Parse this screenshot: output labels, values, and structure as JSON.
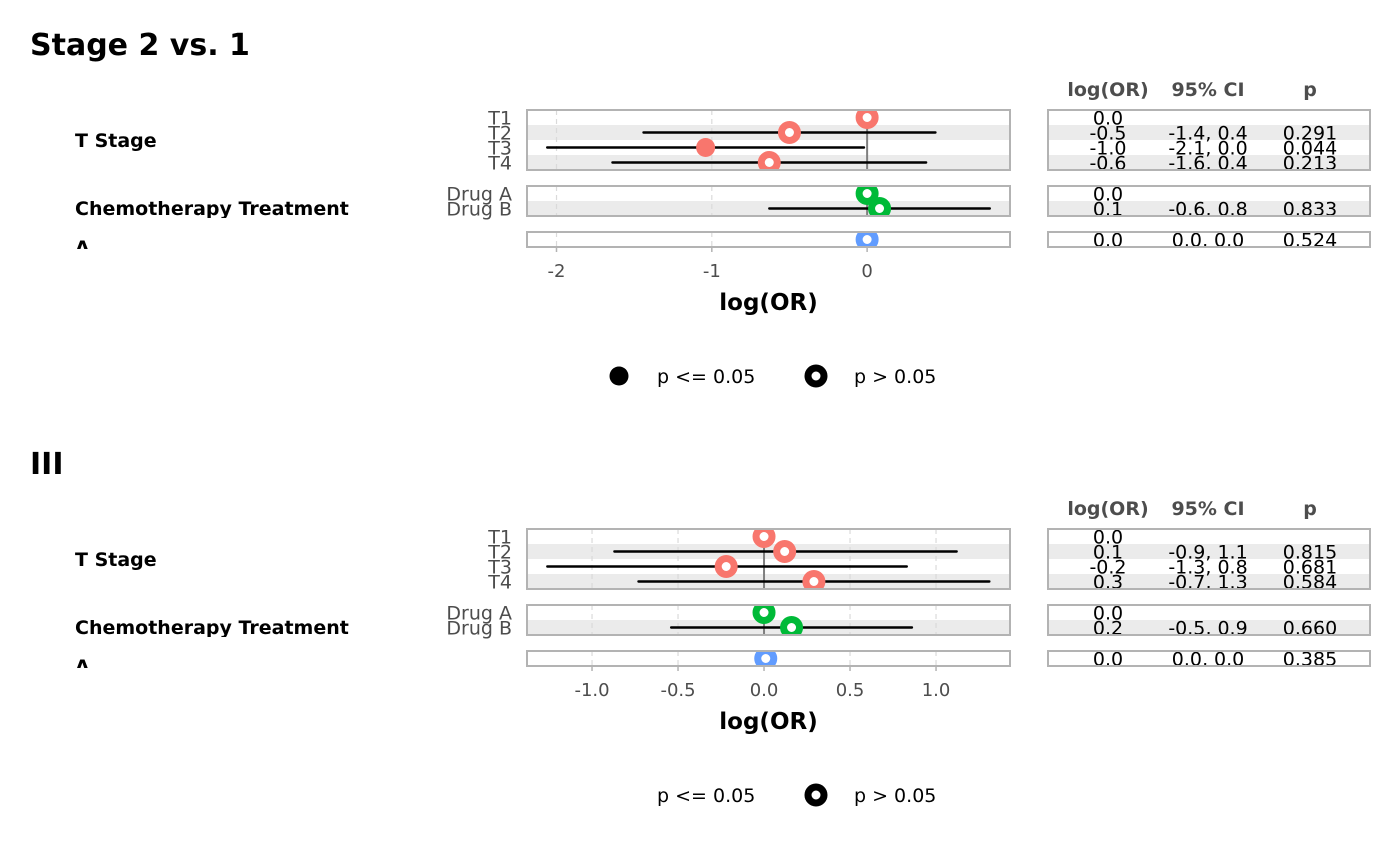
{
  "colors": {
    "T Stage": "#F8766D",
    "Chemotherapy Treatment": "#00BA38",
    "Age": "#619CFF",
    "panel_band": "#EBEBEB",
    "panel_border": "#B3B3B3",
    "ci_line": "#000000",
    "ref_line": "#7F7F7F"
  },
  "chart_data": [
    {
      "type": "forest",
      "title": "Stage 2 vs. 1",
      "xlabel": "log(OR)",
      "xlim": [
        -2.19,
        0.92
      ],
      "xticks": [
        -2,
        -1,
        0
      ],
      "xtick_labels": [
        "-2",
        "-1",
        "0"
      ],
      "table_headers": [
        "log(OR)",
        "95% CI",
        "p"
      ],
      "groups": [
        {
          "label": "T Stage",
          "color_key": "T Stage",
          "rows": [
            {
              "level": "T1",
              "estimate": 0.0,
              "ci_low": null,
              "ci_high": null,
              "est_label": "0.0",
              "ci_label": "",
              "p_label": "",
              "significant": false
            },
            {
              "level": "T2",
              "estimate": -0.5,
              "ci_low": -1.44,
              "ci_high": 0.44,
              "est_label": "-0.5",
              "ci_label": "-1.4, 0.4",
              "p_label": "0.291",
              "significant": false
            },
            {
              "level": "T3",
              "estimate": -1.04,
              "ci_low": -2.06,
              "ci_high": -0.02,
              "est_label": "-1.0",
              "ci_label": "-2.1, 0.0",
              "p_label": "0.044",
              "significant": true
            },
            {
              "level": "T4",
              "estimate": -0.63,
              "ci_low": -1.64,
              "ci_high": 0.38,
              "est_label": "-0.6",
              "ci_label": "-1.6, 0.4",
              "p_label": "0.213",
              "significant": false
            }
          ]
        },
        {
          "label": "Chemotherapy Treatment",
          "color_key": "Chemotherapy Treatment",
          "rows": [
            {
              "level": "Drug A",
              "estimate": 0.0,
              "ci_low": null,
              "ci_high": null,
              "est_label": "0.0",
              "ci_label": "",
              "p_label": "",
              "significant": false
            },
            {
              "level": "Drug B",
              "estimate": 0.08,
              "ci_low": -0.63,
              "ci_high": 0.79,
              "est_label": "0.1",
              "ci_label": "-0.6, 0.8",
              "p_label": "0.833",
              "significant": false
            }
          ]
        },
        {
          "label": "A",
          "color_key": "Age",
          "rows": [
            {
              "level": "",
              "estimate": 0.0,
              "ci_low": null,
              "ci_high": null,
              "est_label": "0.0",
              "ci_label": "0.0, 0.0",
              "p_label": "0.524",
              "significant": false
            }
          ]
        }
      ],
      "legend": [
        {
          "label": "p <= 0.05",
          "shape": "filled"
        },
        {
          "label": "p > 0.05",
          "shape": "ring"
        }
      ],
      "legend_position": "bottom"
    },
    {
      "type": "forest",
      "title": "III",
      "xlabel": "log(OR)",
      "xlim": [
        -1.378,
        1.43
      ],
      "xticks": [
        -1.0,
        -0.5,
        0.0,
        0.5,
        1.0
      ],
      "xtick_labels": [
        "-1.0",
        "-0.5",
        "0.0",
        "0.5",
        "1.0"
      ],
      "table_headers": [
        "log(OR)",
        "95% CI",
        "p"
      ],
      "groups": [
        {
          "label": "T Stage",
          "color_key": "T Stage",
          "rows": [
            {
              "level": "T1",
              "estimate": 0.0,
              "ci_low": null,
              "ci_high": null,
              "est_label": "0.0",
              "ci_label": "",
              "p_label": "",
              "significant": false
            },
            {
              "level": "T2",
              "estimate": 0.12,
              "ci_low": -0.87,
              "ci_high": 1.12,
              "est_label": "0.1",
              "ci_label": "-0.9, 1.1",
              "p_label": "0.815",
              "significant": false
            },
            {
              "level": "T3",
              "estimate": -0.22,
              "ci_low": -1.26,
              "ci_high": 0.83,
              "est_label": "-0.2",
              "ci_label": "-1.3, 0.8",
              "p_label": "0.681",
              "significant": false
            },
            {
              "level": "T4",
              "estimate": 0.29,
              "ci_low": -0.73,
              "ci_high": 1.31,
              "est_label": "0.3",
              "ci_label": "-0.7, 1.3",
              "p_label": "0.584",
              "significant": false
            }
          ]
        },
        {
          "label": "Chemotherapy Treatment",
          "color_key": "Chemotherapy Treatment",
          "rows": [
            {
              "level": "Drug A",
              "estimate": 0.0,
              "ci_low": null,
              "ci_high": null,
              "est_label": "0.0",
              "ci_label": "",
              "p_label": "",
              "significant": false
            },
            {
              "level": "Drug B",
              "estimate": 0.16,
              "ci_low": -0.54,
              "ci_high": 0.86,
              "est_label": "0.2",
              "ci_label": "-0.5, 0.9",
              "p_label": "0.660",
              "significant": false
            }
          ]
        },
        {
          "label": "A",
          "color_key": "Age",
          "rows": [
            {
              "level": "",
              "estimate": 0.01,
              "ci_low": null,
              "ci_high": null,
              "est_label": "0.0",
              "ci_label": "0.0, 0.0",
              "p_label": "0.385",
              "significant": false
            }
          ]
        }
      ],
      "legend": [
        {
          "label": "p <= 0.05",
          "shape": "none"
        },
        {
          "label": "p > 0.05",
          "shape": "ring"
        }
      ],
      "legend_position": "bottom"
    }
  ]
}
